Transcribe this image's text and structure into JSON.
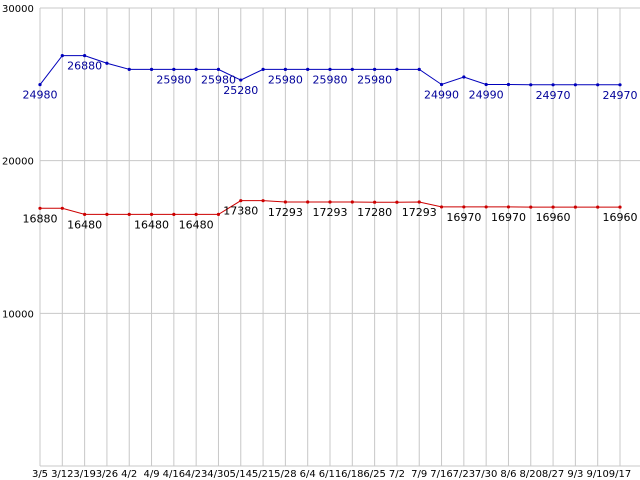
{
  "chart_data": {
    "type": "line",
    "title": "",
    "grid": true,
    "background_color": "#ffffff",
    "grid_color": "#c8c8c8",
    "axis_text_color": "#000000",
    "ylim": [
      0,
      30000
    ],
    "y_ticks": [
      10000,
      20000,
      30000
    ],
    "x_labels": [
      "3/5",
      "3/12",
      "3/19",
      "3/26",
      "4/2",
      "4/9",
      "4/16",
      "4/23",
      "4/30",
      "5/14",
      "5/21",
      "5/28",
      "6/4",
      "6/11",
      "6/18",
      "6/25",
      "7/2",
      "7/9",
      "7/16",
      "7/23",
      "7/30",
      "8/6",
      "8/20",
      "8/27",
      "9/3",
      "9/10",
      "9/17"
    ],
    "series": [
      {
        "name": "upper-price-series",
        "color": "#0000bb",
        "label_color": "#000099",
        "values": [
          24980,
          26880,
          26880,
          26380,
          25980,
          25980,
          25980,
          25980,
          25980,
          25280,
          25980,
          25980,
          25980,
          25980,
          25980,
          25980,
          25980,
          25980,
          24990,
          25480,
          24990,
          24990,
          24970,
          24970,
          24970,
          24970,
          24970
        ],
        "labels": {
          "0": "24980",
          "2": "26880",
          "6": "25980",
          "8": "25980",
          "9": "25280",
          "11": "25980",
          "13": "25980",
          "15": "25980",
          "18": "24990",
          "20": "24990",
          "23": "24970",
          "26": "24970"
        }
      },
      {
        "name": "lower-price-series",
        "color": "#cc0000",
        "label_color": "#000000",
        "values": [
          16880,
          16880,
          16480,
          16480,
          16480,
          16480,
          16480,
          16480,
          16480,
          17380,
          17380,
          17293,
          17293,
          17293,
          17293,
          17280,
          17280,
          17293,
          16970,
          16970,
          16970,
          16970,
          16960,
          16960,
          16960,
          16960,
          16960
        ],
        "labels": {
          "0": "16880",
          "2": "16480",
          "5": "16480",
          "7": "16480",
          "9": "17380",
          "11": "17293",
          "13": "17293",
          "15": "17280",
          "17": "17293",
          "19": "16970",
          "21": "16970",
          "23": "16960",
          "26": "16960"
        }
      }
    ]
  }
}
